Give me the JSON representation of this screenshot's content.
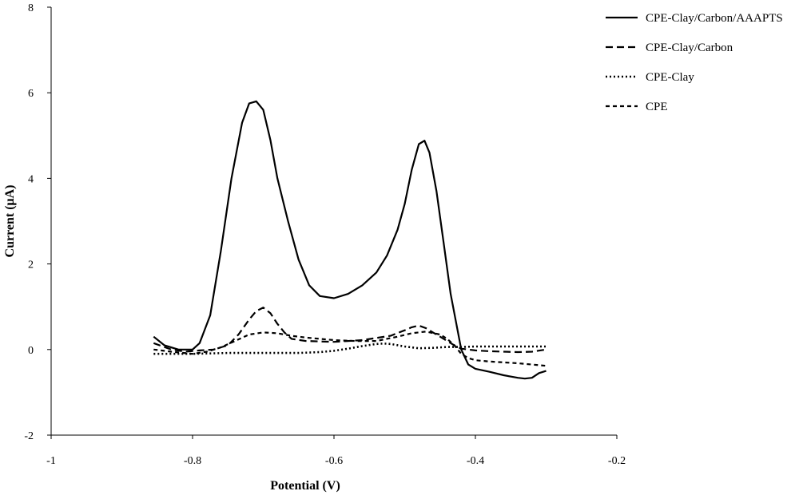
{
  "chart_data": {
    "type": "line",
    "title": "",
    "xlabel": "Potential (V)",
    "ylabel": "Current (μA)",
    "xlim": [
      -1,
      -0.2
    ],
    "ylim": [
      -2,
      8
    ],
    "xticks": [
      -1,
      -0.8,
      -0.6,
      -0.4,
      -0.2
    ],
    "xtick_labels": [
      "-1",
      "-0.8",
      "-0.6",
      "-0.4",
      "-0.2"
    ],
    "yticks": [
      -2,
      0,
      2,
      4,
      6,
      8
    ],
    "ytick_labels": [
      "-2",
      "0",
      "2",
      "4",
      "6",
      "8"
    ],
    "grid": false,
    "legend_position": "top-right",
    "series": [
      {
        "name": "CPE-Clay/Carbon/AAAPTS",
        "style": "solid",
        "color": "#000000",
        "x": [
          -0.855,
          -0.84,
          -0.82,
          -0.8,
          -0.79,
          -0.775,
          -0.76,
          -0.745,
          -0.73,
          -0.72,
          -0.71,
          -0.7,
          -0.69,
          -0.68,
          -0.665,
          -0.65,
          -0.635,
          -0.62,
          -0.6,
          -0.58,
          -0.56,
          -0.54,
          -0.525,
          -0.51,
          -0.5,
          -0.49,
          -0.48,
          -0.472,
          -0.465,
          -0.455,
          -0.445,
          -0.435,
          -0.42,
          -0.41,
          -0.4,
          -0.38,
          -0.36,
          -0.34,
          -0.33,
          -0.32,
          -0.31,
          -0.3
        ],
        "y": [
          0.3,
          0.1,
          0.0,
          0.0,
          0.15,
          0.8,
          2.3,
          4.0,
          5.3,
          5.75,
          5.8,
          5.6,
          4.9,
          4.0,
          3.0,
          2.1,
          1.5,
          1.25,
          1.2,
          1.3,
          1.5,
          1.8,
          2.2,
          2.8,
          3.4,
          4.2,
          4.8,
          4.88,
          4.6,
          3.7,
          2.5,
          1.3,
          0.0,
          -0.35,
          -0.45,
          -0.52,
          -0.6,
          -0.66,
          -0.68,
          -0.66,
          -0.55,
          -0.5
        ]
      },
      {
        "name": "CPE-Clay/Carbon",
        "style": "dashed",
        "color": "#000000",
        "x": [
          -0.855,
          -0.83,
          -0.81,
          -0.79,
          -0.77,
          -0.75,
          -0.735,
          -0.72,
          -0.71,
          -0.7,
          -0.69,
          -0.68,
          -0.67,
          -0.66,
          -0.64,
          -0.6,
          -0.56,
          -0.52,
          -0.5,
          -0.49,
          -0.48,
          -0.47,
          -0.46,
          -0.45,
          -0.44,
          -0.43,
          -0.42,
          -0.4,
          -0.38,
          -0.36,
          -0.34,
          -0.32,
          -0.3
        ],
        "y": [
          0.15,
          0.0,
          -0.05,
          -0.02,
          0.0,
          0.1,
          0.35,
          0.7,
          0.9,
          0.98,
          0.85,
          0.6,
          0.4,
          0.25,
          0.2,
          0.18,
          0.22,
          0.32,
          0.45,
          0.52,
          0.56,
          0.5,
          0.4,
          0.3,
          0.2,
          0.1,
          0.02,
          -0.02,
          -0.04,
          -0.05,
          -0.06,
          -0.05,
          0.0
        ]
      },
      {
        "name": "CPE-Clay",
        "style": "dotted",
        "color": "#000000",
        "x": [
          -0.855,
          -0.8,
          -0.75,
          -0.7,
          -0.65,
          -0.62,
          -0.6,
          -0.58,
          -0.56,
          -0.54,
          -0.53,
          -0.52,
          -0.5,
          -0.48,
          -0.46,
          -0.44,
          -0.42,
          -0.4,
          -0.35,
          -0.3
        ],
        "y": [
          -0.1,
          -0.1,
          -0.08,
          -0.08,
          -0.08,
          -0.06,
          -0.03,
          0.02,
          0.08,
          0.13,
          0.14,
          0.13,
          0.07,
          0.03,
          0.04,
          0.06,
          0.06,
          0.07,
          0.07,
          0.07
        ]
      },
      {
        "name": "CPE",
        "style": "short-dashed",
        "color": "#000000",
        "x": [
          -0.855,
          -0.83,
          -0.8,
          -0.78,
          -0.76,
          -0.74,
          -0.72,
          -0.7,
          -0.68,
          -0.66,
          -0.64,
          -0.62,
          -0.6,
          -0.57,
          -0.54,
          -0.51,
          -0.49,
          -0.47,
          -0.45,
          -0.44,
          -0.43,
          -0.42,
          -0.41,
          -0.4,
          -0.38,
          -0.36,
          -0.34,
          -0.32,
          -0.3
        ],
        "y": [
          0.0,
          -0.05,
          -0.1,
          -0.05,
          0.05,
          0.2,
          0.35,
          0.4,
          0.38,
          0.32,
          0.28,
          0.25,
          0.22,
          0.2,
          0.2,
          0.3,
          0.38,
          0.42,
          0.35,
          0.25,
          0.1,
          -0.1,
          -0.2,
          -0.25,
          -0.28,
          -0.3,
          -0.32,
          -0.35,
          -0.38
        ]
      }
    ]
  }
}
